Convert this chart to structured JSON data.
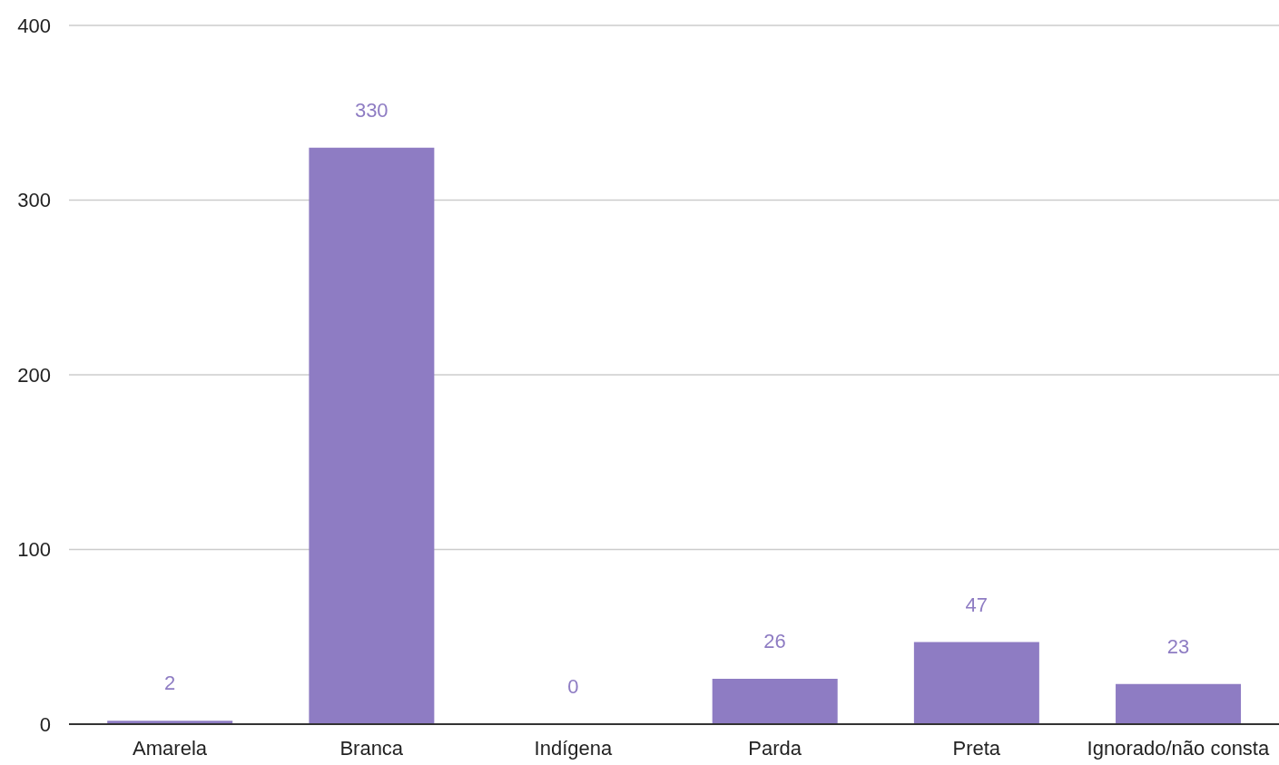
{
  "chart_data": {
    "type": "bar",
    "categories": [
      "Amarela",
      "Branca",
      "Indígena",
      "Parda",
      "Preta",
      "Ignorado/não consta"
    ],
    "values": [
      2,
      330,
      0,
      26,
      47,
      23
    ],
    "color": "#8e7cc3",
    "ylim": [
      0,
      400
    ],
    "yticks": [
      0,
      100,
      200,
      300,
      400
    ],
    "grid": "y",
    "data_labels": true
  }
}
